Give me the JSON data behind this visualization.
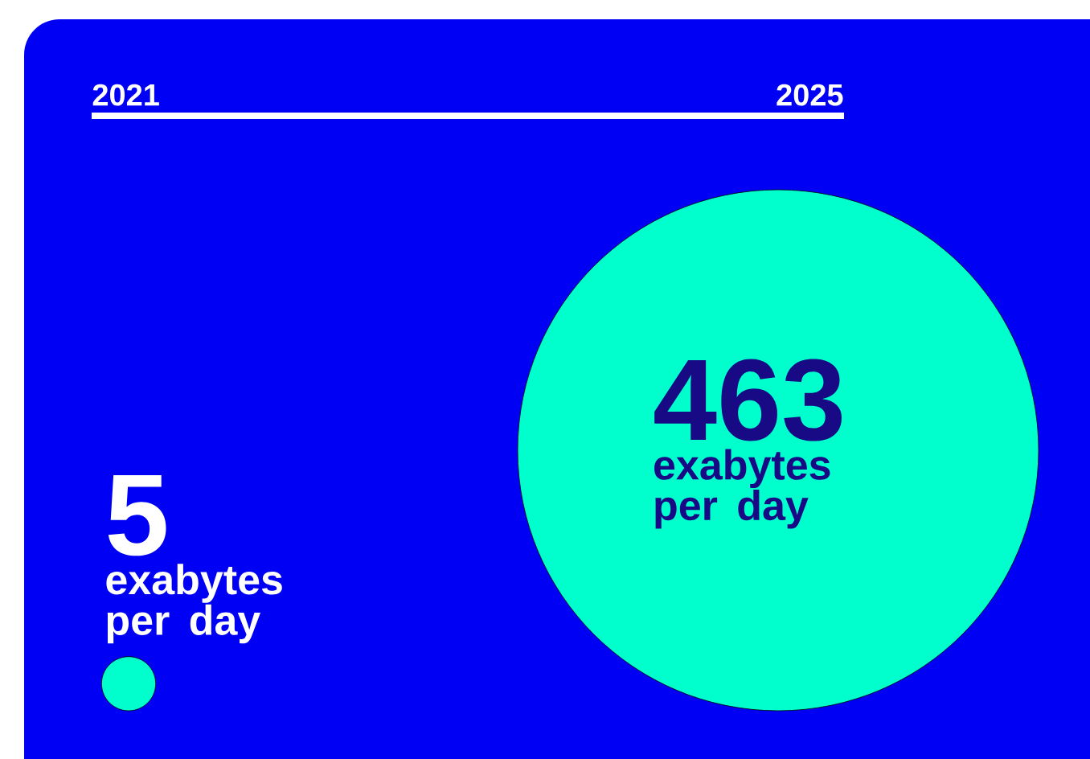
{
  "chart_data": {
    "type": "other",
    "categories": [
      "2021",
      "2025"
    ],
    "values": [
      5,
      463
    ],
    "color": "#00ffcc",
    "data_labels": true,
    "annotations": [
      "exabytes per day",
      "exabytes per day"
    ]
  }
}
